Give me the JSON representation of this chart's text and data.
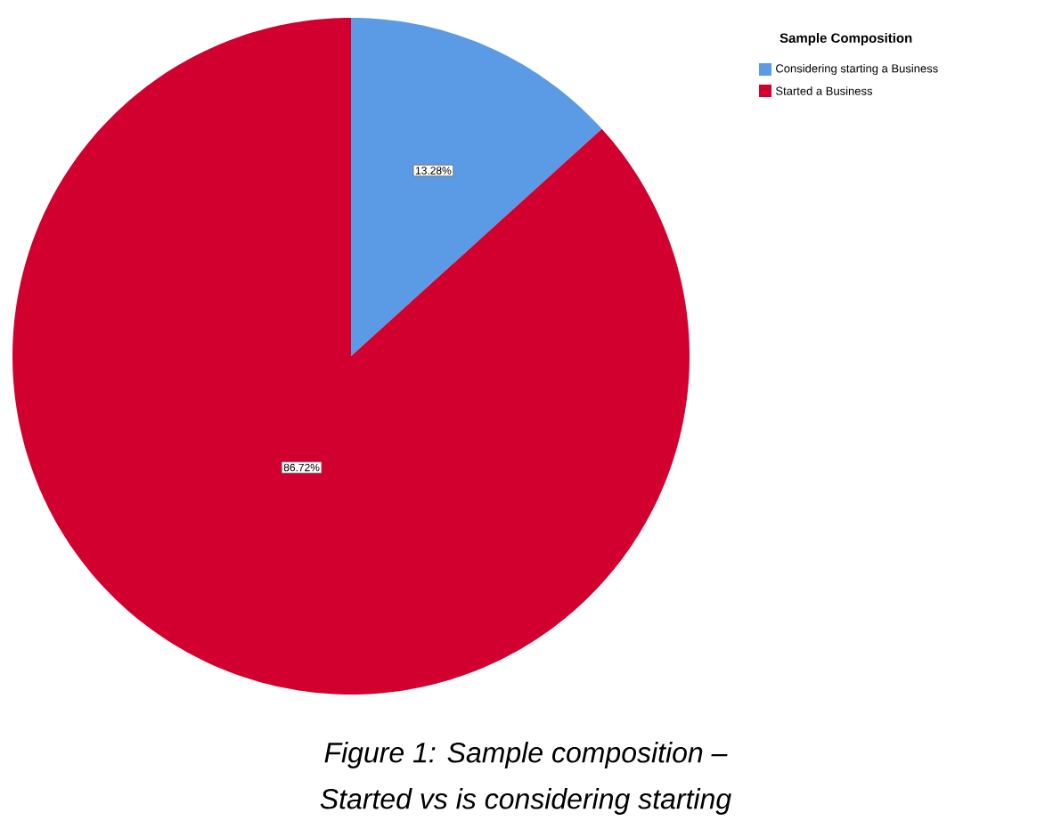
{
  "chart_data": {
    "type": "pie",
    "legend_title": "Sample Composition",
    "categories": [
      "Considering starting a Business",
      "Started a Business"
    ],
    "values": [
      13.28,
      86.72
    ],
    "value_labels": [
      "13.28%",
      "86.72%"
    ],
    "colors": [
      "#5b9be5",
      "#d1002f"
    ],
    "legend": "top right",
    "annotations": [
      "Figure 1: Sample composition –",
      "Started vs is considering starting"
    ]
  }
}
